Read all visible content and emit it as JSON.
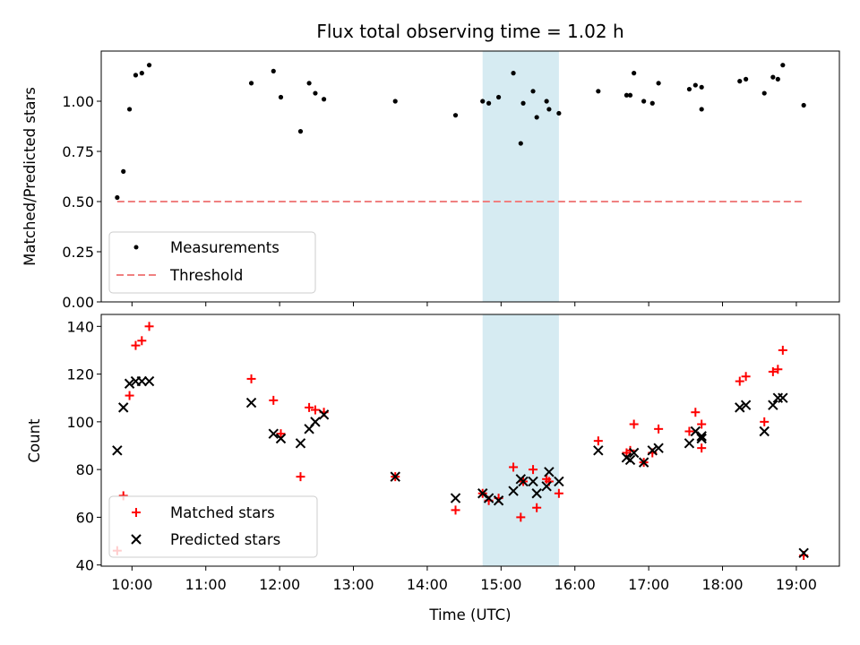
{
  "chart_data": [
    {
      "type": "scatter",
      "title": "Flux total observing time = 1.02 h",
      "xlabel": "",
      "ylabel": "Matched/Predicted stars",
      "xlim": [
        "09:35",
        "19:35"
      ],
      "ylim": [
        0,
        1.25
      ],
      "yticks": [
        0.0,
        0.25,
        0.5,
        0.75,
        1.0
      ],
      "ytick_labels": [
        "0.00",
        "0.25",
        "0.50",
        "0.75",
        "1.00"
      ],
      "shaded_span": [
        "14:45",
        "15:47"
      ],
      "shaded_color": "#add8e6",
      "legend_position": "lower-left",
      "series": [
        {
          "name": "Measurements",
          "marker": "dot",
          "color": "#000000",
          "points": [
            [
              "09:48",
              0.52
            ],
            [
              "09:53",
              0.65
            ],
            [
              "09:58",
              0.96
            ],
            [
              "10:03",
              1.13
            ],
            [
              "10:08",
              1.14
            ],
            [
              "10:14",
              1.18
            ],
            [
              "11:37",
              1.09
            ],
            [
              "11:55",
              1.15
            ],
            [
              "12:01",
              1.02
            ],
            [
              "12:17",
              0.85
            ],
            [
              "12:24",
              1.09
            ],
            [
              "12:29",
              1.04
            ],
            [
              "12:36",
              1.01
            ],
            [
              "13:34",
              1.0
            ],
            [
              "14:23",
              0.93
            ],
            [
              "14:45",
              1.0
            ],
            [
              "14:50",
              0.99
            ],
            [
              "14:58",
              1.02
            ],
            [
              "15:10",
              1.14
            ],
            [
              "15:16",
              0.79
            ],
            [
              "15:18",
              0.99
            ],
            [
              "15:26",
              1.05
            ],
            [
              "15:29",
              0.92
            ],
            [
              "15:37",
              1.0
            ],
            [
              "15:39",
              0.96
            ],
            [
              "15:47",
              0.94
            ],
            [
              "16:19",
              1.05
            ],
            [
              "16:42",
              1.03
            ],
            [
              "16:45",
              1.03
            ],
            [
              "16:48",
              1.14
            ],
            [
              "16:56",
              1.0
            ],
            [
              "17:03",
              0.99
            ],
            [
              "17:08",
              1.09
            ],
            [
              "17:33",
              1.06
            ],
            [
              "17:38",
              1.08
            ],
            [
              "17:43",
              1.07
            ],
            [
              "17:43",
              0.96
            ],
            [
              "18:14",
              1.1
            ],
            [
              "18:19",
              1.11
            ],
            [
              "18:34",
              1.04
            ],
            [
              "18:41",
              1.12
            ],
            [
              "18:45",
              1.11
            ],
            [
              "18:49",
              1.18
            ],
            [
              "19:06",
              0.98
            ]
          ]
        },
        {
          "name": "Threshold",
          "style": "dashed",
          "color": "#f08080",
          "points": [
            [
              "09:48",
              0.5
            ],
            [
              "19:06",
              0.5
            ]
          ]
        }
      ]
    },
    {
      "type": "scatter",
      "title": "",
      "xlabel": "Time (UTC)",
      "ylabel": "Count",
      "xlim": [
        "09:35",
        "19:35"
      ],
      "ylim": [
        39.5,
        145
      ],
      "yticks": [
        40,
        60,
        80,
        100,
        120,
        140
      ],
      "xticks": [
        "10:00",
        "11:00",
        "12:00",
        "13:00",
        "14:00",
        "15:00",
        "16:00",
        "17:00",
        "18:00",
        "19:00"
      ],
      "shaded_span": [
        "14:45",
        "15:47"
      ],
      "shaded_color": "#add8e6",
      "legend_position": "lower-left",
      "series": [
        {
          "name": "Matched stars",
          "marker": "plus",
          "color": "#ff0000",
          "points": [
            [
              "09:48",
              46
            ],
            [
              "09:53",
              69
            ],
            [
              "09:58",
              111
            ],
            [
              "10:03",
              132
            ],
            [
              "10:08",
              134
            ],
            [
              "10:14",
              140
            ],
            [
              "11:37",
              118
            ],
            [
              "11:55",
              109
            ],
            [
              "12:01",
              95
            ],
            [
              "12:17",
              77
            ],
            [
              "12:24",
              106
            ],
            [
              "12:29",
              105
            ],
            [
              "12:36",
              104
            ],
            [
              "13:34",
              77
            ],
            [
              "14:23",
              63
            ],
            [
              "14:45",
              70
            ],
            [
              "14:50",
              67
            ],
            [
              "14:58",
              68
            ],
            [
              "15:10",
              81
            ],
            [
              "15:16",
              60
            ],
            [
              "15:18",
              75
            ],
            [
              "15:26",
              80
            ],
            [
              "15:29",
              64
            ],
            [
              "15:37",
              76
            ],
            [
              "15:39",
              75
            ],
            [
              "15:47",
              70
            ],
            [
              "16:19",
              92
            ],
            [
              "16:42",
              87
            ],
            [
              "16:45",
              88
            ],
            [
              "16:48",
              99
            ],
            [
              "16:56",
              83
            ],
            [
              "17:03",
              87
            ],
            [
              "17:08",
              97
            ],
            [
              "17:33",
              96
            ],
            [
              "17:38",
              104
            ],
            [
              "17:43",
              99
            ],
            [
              "17:43",
              89
            ],
            [
              "18:14",
              117
            ],
            [
              "18:19",
              119
            ],
            [
              "18:34",
              100
            ],
            [
              "18:41",
              121
            ],
            [
              "18:45",
              122
            ],
            [
              "18:49",
              130
            ],
            [
              "19:06",
              44
            ]
          ]
        },
        {
          "name": "Predicted stars",
          "marker": "x",
          "color": "#000000",
          "points": [
            [
              "09:48",
              88
            ],
            [
              "09:53",
              106
            ],
            [
              "09:58",
              116
            ],
            [
              "10:03",
              117
            ],
            [
              "10:08",
              117
            ],
            [
              "10:14",
              117
            ],
            [
              "11:37",
              108
            ],
            [
              "11:55",
              95
            ],
            [
              "12:01",
              93
            ],
            [
              "12:17",
              91
            ],
            [
              "12:24",
              97
            ],
            [
              "12:29",
              100
            ],
            [
              "12:36",
              103
            ],
            [
              "13:34",
              77
            ],
            [
              "14:23",
              68
            ],
            [
              "14:45",
              70
            ],
            [
              "14:50",
              68
            ],
            [
              "14:58",
              67
            ],
            [
              "15:10",
              71
            ],
            [
              "15:16",
              76
            ],
            [
              "15:18",
              75
            ],
            [
              "15:26",
              75
            ],
            [
              "15:29",
              70
            ],
            [
              "15:37",
              73
            ],
            [
              "15:39",
              79
            ],
            [
              "15:47",
              75
            ],
            [
              "16:19",
              88
            ],
            [
              "16:42",
              85
            ],
            [
              "16:45",
              84
            ],
            [
              "16:48",
              87
            ],
            [
              "16:56",
              83
            ],
            [
              "17:03",
              88
            ],
            [
              "17:08",
              89
            ],
            [
              "17:33",
              91
            ],
            [
              "17:38",
              96
            ],
            [
              "17:43",
              94
            ],
            [
              "17:43",
              93
            ],
            [
              "18:14",
              106
            ],
            [
              "18:19",
              107
            ],
            [
              "18:34",
              96
            ],
            [
              "18:41",
              107
            ],
            [
              "18:45",
              110
            ],
            [
              "18:49",
              110
            ],
            [
              "19:06",
              45
            ]
          ]
        }
      ]
    }
  ]
}
